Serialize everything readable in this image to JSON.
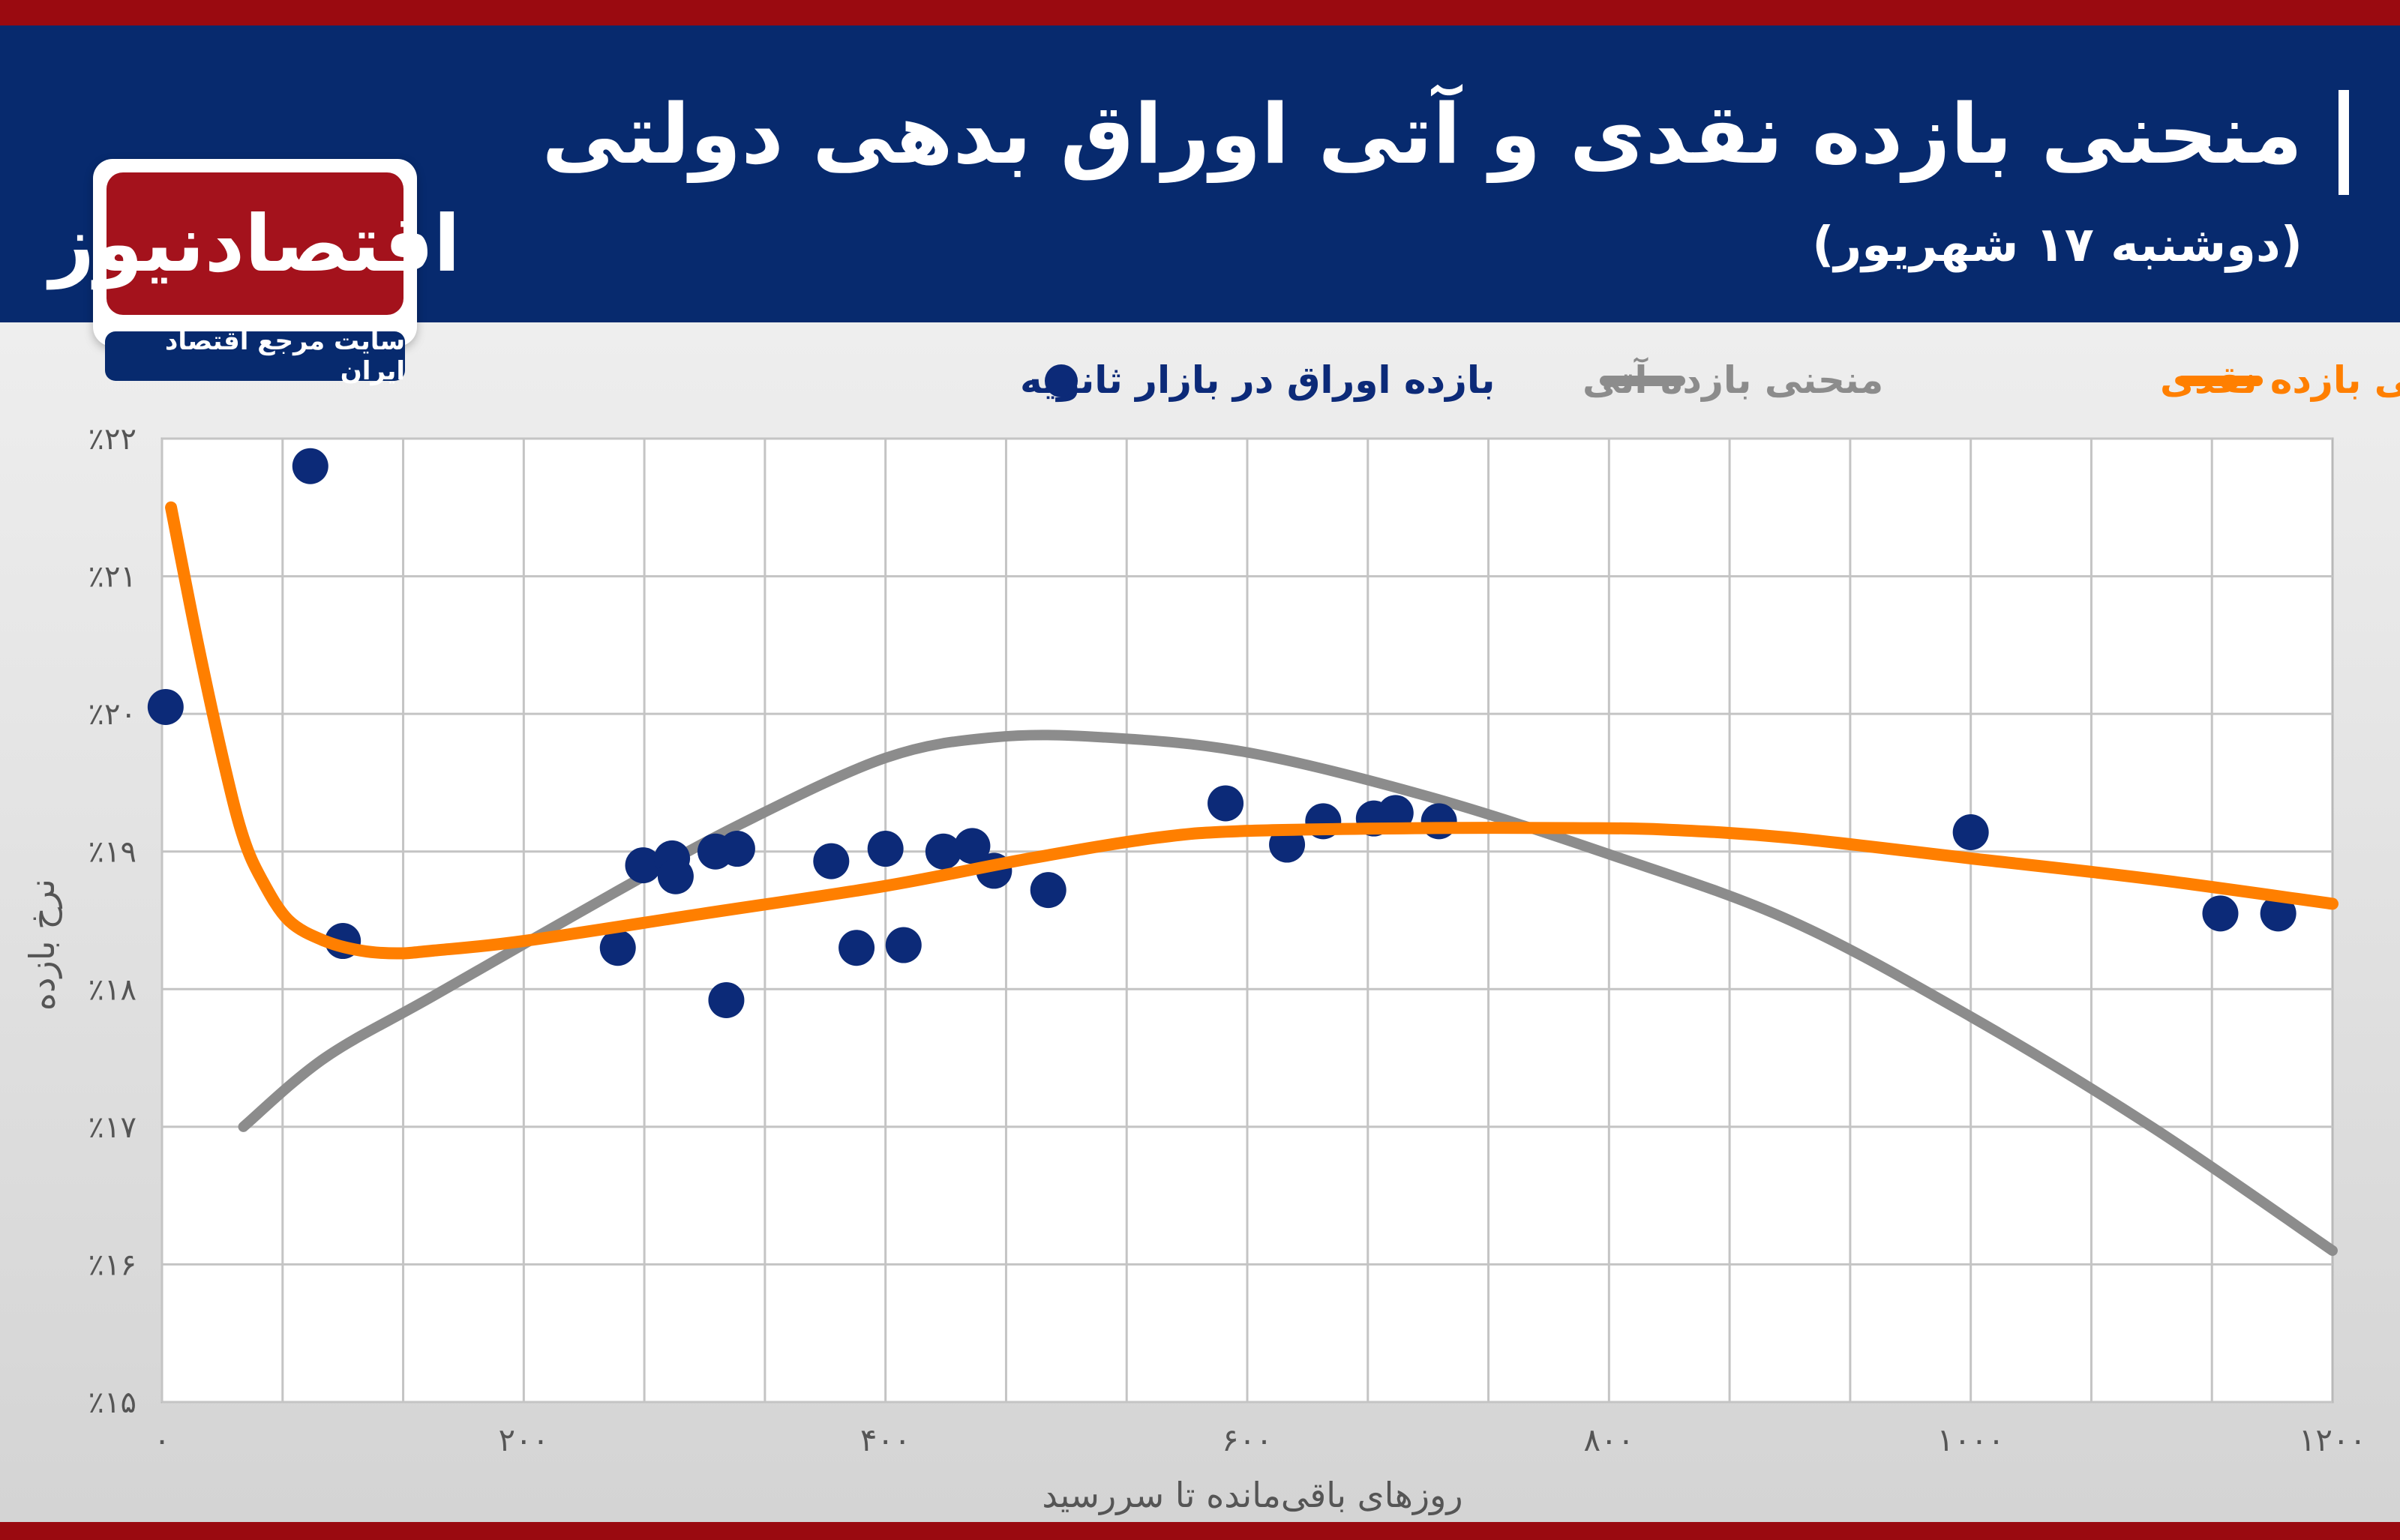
{
  "header": {
    "title": "منحنی بازده نقدی و آتی اوراق بدهی دولتی",
    "subtitle": "(دوشنبه ۱۷ شهریور)"
  },
  "logo": {
    "name": "اقتصادنیوز",
    "tagline": "سایت مرجع اقتصاد ایران"
  },
  "colors": {
    "spot": "#ff7f00",
    "forward": "#8c8c8c",
    "points": "#0c2a78",
    "header": "#072a6e",
    "stripe": "#9a0a10"
  },
  "chart_data": {
    "type": "line",
    "xlabel": "روزهای باقی‌مانده تا سررسید",
    "ylabel": "نرخ بازده",
    "xlim": [
      0,
      1200
    ],
    "ylim": [
      15,
      22
    ],
    "x_ticks": [
      0,
      200,
      400,
      600,
      800,
      1000,
      1200
    ],
    "x_tick_labels": [
      "۰",
      "۲۰۰",
      "۴۰۰",
      "۶۰۰",
      "۸۰۰",
      "۱۰۰۰",
      "۱۲۰۰"
    ],
    "y_ticks": [
      15,
      16,
      17,
      18,
      19,
      20,
      21,
      22
    ],
    "y_tick_labels": [
      "٪۱۵",
      "٪۱۶",
      "٪۱۷",
      "٪۱۸",
      "٪۱۹",
      "٪۲۰",
      "٪۲۱",
      "٪۲۲"
    ],
    "grid": true,
    "legend_position": "top",
    "series": [
      {
        "name": "منحنی بازده نقدی",
        "kind": "line",
        "color": "#ff7f00",
        "points": [
          [
            5,
            21.5
          ],
          [
            20,
            20.5
          ],
          [
            35,
            19.6
          ],
          [
            45,
            19.1
          ],
          [
            55,
            18.8
          ],
          [
            70,
            18.5
          ],
          [
            90,
            18.35
          ],
          [
            110,
            18.28
          ],
          [
            130,
            18.26
          ],
          [
            150,
            18.28
          ],
          [
            200,
            18.35
          ],
          [
            300,
            18.55
          ],
          [
            400,
            18.75
          ],
          [
            480,
            18.95
          ],
          [
            550,
            19.1
          ],
          [
            600,
            19.15
          ],
          [
            700,
            19.17
          ],
          [
            780,
            19.17
          ],
          [
            830,
            19.16
          ],
          [
            900,
            19.1
          ],
          [
            1000,
            18.95
          ],
          [
            1100,
            18.8
          ],
          [
            1200,
            18.62
          ]
        ]
      },
      {
        "name": "منحنی بازده آتی",
        "kind": "line",
        "color": "#8c8c8c",
        "points": [
          [
            45,
            17.0
          ],
          [
            90,
            17.5
          ],
          [
            150,
            17.95
          ],
          [
            250,
            18.7
          ],
          [
            320,
            19.2
          ],
          [
            400,
            19.68
          ],
          [
            460,
            19.83
          ],
          [
            520,
            19.83
          ],
          [
            600,
            19.72
          ],
          [
            700,
            19.4
          ],
          [
            800,
            18.98
          ],
          [
            900,
            18.5
          ],
          [
            1000,
            17.8
          ],
          [
            1100,
            17.0
          ],
          [
            1200,
            16.1
          ]
        ]
      },
      {
        "name": "بازده اوراق در بازار ثانویه",
        "kind": "scatter",
        "color": "#0c2a78",
        "points": [
          [
            2,
            20.05
          ],
          [
            82,
            21.8
          ],
          [
            100,
            18.35
          ],
          [
            252,
            18.3
          ],
          [
            266,
            18.9
          ],
          [
            282,
            18.95
          ],
          [
            284,
            18.82
          ],
          [
            306,
            19.0
          ],
          [
            312,
            17.92
          ],
          [
            318,
            19.02
          ],
          [
            370,
            18.93
          ],
          [
            384,
            18.3
          ],
          [
            400,
            19.02
          ],
          [
            410,
            18.32
          ],
          [
            432,
            19.0
          ],
          [
            448,
            19.04
          ],
          [
            460,
            18.86
          ],
          [
            490,
            18.72
          ],
          [
            588,
            19.35
          ],
          [
            622,
            19.05
          ],
          [
            642,
            19.22
          ],
          [
            670,
            19.24
          ],
          [
            682,
            19.28
          ],
          [
            706,
            19.22
          ],
          [
            1000,
            19.14
          ],
          [
            1138,
            18.55
          ],
          [
            1170,
            18.55
          ]
        ]
      }
    ]
  }
}
